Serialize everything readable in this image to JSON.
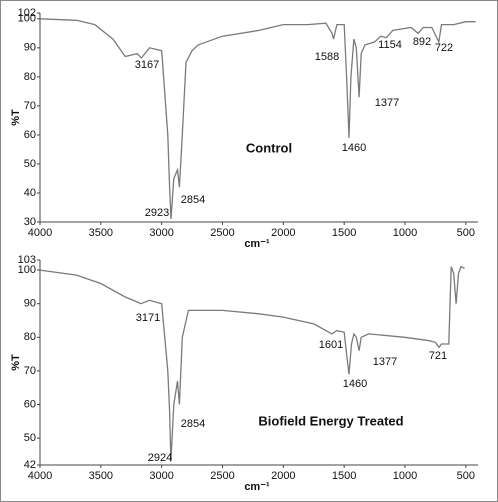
{
  "chart_data": [
    {
      "type": "line",
      "title": "Control",
      "xlabel": "cm⁻¹",
      "ylabel": "%T",
      "color": "#7a7a7a",
      "xlim": [
        4000,
        400
      ],
      "xticks": [
        4000,
        3500,
        3000,
        2500,
        2000,
        1500,
        1000,
        500
      ],
      "ylim": [
        30,
        102
      ],
      "yticks": [
        30,
        40,
        50,
        60,
        70,
        80,
        90,
        100,
        102
      ],
      "x": [
        4000,
        3700,
        3550,
        3400,
        3300,
        3200,
        3167,
        3100,
        3000,
        2950,
        2935,
        2923,
        2900,
        2870,
        2854,
        2830,
        2800,
        2750,
        2700,
        2500,
        2200,
        2000,
        1800,
        1650,
        1600,
        1588,
        1560,
        1500,
        1480,
        1460,
        1445,
        1420,
        1400,
        1377,
        1360,
        1330,
        1250,
        1200,
        1154,
        1100,
        950,
        892,
        850,
        780,
        722,
        700,
        600,
        500,
        420
      ],
      "values": [
        100,
        99.5,
        98,
        93,
        87,
        88,
        86.5,
        90,
        89,
        60,
        42,
        31,
        45,
        48,
        42,
        60,
        85,
        89,
        91,
        94,
        96,
        98,
        98,
        98.5,
        95,
        93,
        98,
        98,
        80,
        59,
        80,
        93,
        90,
        73,
        88,
        91,
        92,
        94,
        93.5,
        96,
        97,
        95,
        97,
        97,
        92,
        98,
        98,
        99,
        99
      ],
      "annotations": [
        "3167",
        "2923",
        "2854",
        "1588",
        "1460",
        "1377",
        "1154",
        "892",
        "722"
      ]
    },
    {
      "type": "line",
      "title": "Biofield Energy Treated",
      "xlabel": "cm⁻¹",
      "ylabel": "%T",
      "color": "#7a7a7a",
      "xlim": [
        4000,
        400
      ],
      "xticks": [
        4000,
        3500,
        3000,
        2500,
        2000,
        1500,
        1000,
        500
      ],
      "ylim": [
        42,
        103
      ],
      "yticks": [
        42,
        50,
        60,
        70,
        80,
        90,
        100,
        103
      ],
      "x": [
        4000,
        3700,
        3500,
        3300,
        3200,
        3171,
        3100,
        3000,
        2950,
        2935,
        2924,
        2900,
        2870,
        2854,
        2830,
        2780,
        2500,
        2200,
        2000,
        1750,
        1650,
        1601,
        1560,
        1500,
        1480,
        1460,
        1440,
        1420,
        1400,
        1377,
        1360,
        1300,
        1000,
        800,
        750,
        721,
        700,
        640,
        620,
        600,
        580,
        560,
        540,
        510
      ],
      "values": [
        100,
        98.5,
        96,
        92,
        90.5,
        90,
        91,
        90,
        70,
        58,
        43,
        60,
        67,
        60,
        80,
        88,
        88,
        87,
        86,
        84,
        82,
        81,
        82,
        81.5,
        75,
        69,
        78,
        81,
        80,
        76,
        80,
        81,
        80,
        79,
        78.5,
        77,
        78,
        78,
        101,
        99,
        90,
        99,
        101,
        100.5
      ],
      "annotations": [
        "3171",
        "2924",
        "2854",
        "1601",
        "1460",
        "1377",
        "721"
      ]
    }
  ]
}
